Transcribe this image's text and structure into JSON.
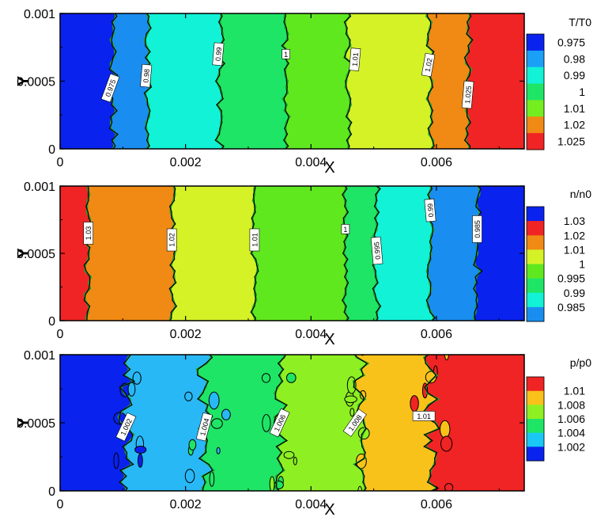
{
  "chart_data": [
    {
      "type": "heatmap",
      "xlabel": "X",
      "ylabel": "Y",
      "xlim": [
        0,
        0.0074
      ],
      "ylim": [
        0,
        0.001
      ],
      "xticks": [
        0,
        0.002,
        0.004,
        0.006
      ],
      "xtick_labels": [
        "0",
        "0.002",
        "0.004",
        "0.006"
      ],
      "yticks": [
        0,
        0.0005,
        0.001
      ],
      "ytick_labels": [
        "0",
        "0.0005",
        "0.001"
      ],
      "legend_title": "T/T0",
      "levels": [
        {
          "label": "0.975",
          "color": "#0a22ee"
        },
        {
          "label": "0.98",
          "color": "#1aa0f6"
        },
        {
          "label": "0.99",
          "color": "#11f2d6"
        },
        {
          "label": "1",
          "color": "#1fe566"
        },
        {
          "label": "1.01",
          "color": "#74ee1f"
        },
        {
          "label": "1.02",
          "color": "#f08a14"
        },
        {
          "label": "1.025",
          "color": "#f02424"
        }
      ],
      "bands": [
        {
          "x_end": 0.00085,
          "color": "#0a22ee"
        },
        {
          "x_end": 0.0014,
          "color": "#1a8df0"
        },
        {
          "x_end": 0.00255,
          "color": "#11f2d6"
        },
        {
          "x_end": 0.0036,
          "color": "#1fe566"
        },
        {
          "x_end": 0.0046,
          "color": "#60e81f"
        },
        {
          "x_end": 0.0059,
          "color": "#d4f226"
        },
        {
          "x_end": 0.0065,
          "color": "#f08a14"
        },
        {
          "x_end": 0.0074,
          "color": "#f02424"
        }
      ],
      "contour_labels": [
        {
          "text": "0.975",
          "x": 0.0008,
          "y": 0.00045,
          "angle": -70
        },
        {
          "text": "0.98",
          "x": 0.00137,
          "y": 0.00054,
          "angle": -85
        },
        {
          "text": "0.99",
          "x": 0.00252,
          "y": 0.0007,
          "angle": -85
        },
        {
          "text": "1",
          "x": 0.0036,
          "y": 0.0007,
          "angle": 0
        },
        {
          "text": "1.01",
          "x": 0.0047,
          "y": 0.00066,
          "angle": -85
        },
        {
          "text": "1.02",
          "x": 0.00587,
          "y": 0.00062,
          "angle": -80
        },
        {
          "text": "1.025",
          "x": 0.0065,
          "y": 0.0004,
          "angle": -85
        }
      ]
    },
    {
      "type": "heatmap",
      "xlabel": "X",
      "ylabel": "Y",
      "xlim": [
        0,
        0.0074
      ],
      "ylim": [
        0,
        0.001
      ],
      "xticks": [
        0,
        0.002,
        0.004,
        0.006
      ],
      "xtick_labels": [
        "0",
        "0.002",
        "0.004",
        "0.006"
      ],
      "yticks": [
        0,
        0.0005,
        0.001
      ],
      "ytick_labels": [
        "0",
        "0.0005",
        "0.001"
      ],
      "legend_title": "n/n0",
      "levels": [
        {
          "label": "1.03",
          "color": "#f02424"
        },
        {
          "label": "1.02",
          "color": "#f08a14"
        },
        {
          "label": "1.01",
          "color": "#d4f226"
        },
        {
          "label": "1",
          "color": "#60e81f"
        },
        {
          "label": "0.995",
          "color": "#1fe566"
        },
        {
          "label": "0.99",
          "color": "#11f2d6"
        },
        {
          "label": "0.985",
          "color": "#1a8df0"
        }
      ],
      "level_colors_extra": "#0a22ee",
      "bands": [
        {
          "x_end": 0.00045,
          "color": "#f02424"
        },
        {
          "x_end": 0.0018,
          "color": "#f08a14"
        },
        {
          "x_end": 0.0031,
          "color": "#d4f226"
        },
        {
          "x_end": 0.00455,
          "color": "#60e81f"
        },
        {
          "x_end": 0.00505,
          "color": "#1fe566"
        },
        {
          "x_end": 0.0059,
          "color": "#11f2d6"
        },
        {
          "x_end": 0.00665,
          "color": "#1a8df0"
        },
        {
          "x_end": 0.0074,
          "color": "#0a22ee"
        }
      ],
      "contour_labels": [
        {
          "text": "1.03",
          "x": 0.00045,
          "y": 0.00065,
          "angle": -90
        },
        {
          "text": "1.02",
          "x": 0.00178,
          "y": 0.0006,
          "angle": -90
        },
        {
          "text": "1.01",
          "x": 0.0031,
          "y": 0.0006,
          "angle": -90
        },
        {
          "text": "1",
          "x": 0.00455,
          "y": 0.00068,
          "angle": 0
        },
        {
          "text": "0.995",
          "x": 0.00505,
          "y": 0.00052,
          "angle": -95
        },
        {
          "text": "0.99",
          "x": 0.0059,
          "y": 0.00082,
          "angle": -95
        },
        {
          "text": "0.985",
          "x": 0.00665,
          "y": 0.00068,
          "angle": -90
        }
      ]
    },
    {
      "type": "heatmap",
      "xlabel": "X",
      "ylabel": "Y",
      "xlim": [
        0,
        0.0074
      ],
      "ylim": [
        0,
        0.001
      ],
      "xticks": [
        0,
        0.002,
        0.004,
        0.006
      ],
      "xtick_labels": [
        "0",
        "0.002",
        "0.004",
        "0.006"
      ],
      "yticks": [
        0,
        0.0005,
        0.001
      ],
      "ytick_labels": [
        "0",
        "0.0005",
        "0.001"
      ],
      "legend_title": "p/p0",
      "levels": [
        {
          "label": "1.01",
          "color": "#f9c21a"
        },
        {
          "label": "1.008",
          "color": "#8ef022"
        },
        {
          "label": "1.006",
          "color": "#1fe566"
        },
        {
          "label": "1.004",
          "color": "#1ac8f6"
        },
        {
          "label": "1.002",
          "color": "#0a22ee"
        }
      ],
      "level_colors_extra": "#f02424",
      "bands": [
        {
          "x_end": 0.00105,
          "color": "#0a22ee"
        },
        {
          "x_end": 0.0023,
          "color": "#28b8f6"
        },
        {
          "x_end": 0.0035,
          "color": "#1fe566"
        },
        {
          "x_end": 0.0048,
          "color": "#8ef022"
        },
        {
          "x_end": 0.0059,
          "color": "#f9c21a"
        },
        {
          "x_end": 0.0074,
          "color": "#f02424"
        }
      ],
      "contour_labels": [
        {
          "text": "1.002",
          "x": 0.00105,
          "y": 0.00047,
          "angle": -65
        },
        {
          "text": "1.004",
          "x": 0.0023,
          "y": 0.00047,
          "angle": -75
        },
        {
          "text": "1.006",
          "x": 0.0035,
          "y": 0.0005,
          "angle": -65
        },
        {
          "text": "1.008",
          "x": 0.0047,
          "y": 0.0005,
          "angle": -55
        },
        {
          "text": "1.01",
          "x": 0.0058,
          "y": 0.00055,
          "angle": 0
        }
      ]
    }
  ]
}
